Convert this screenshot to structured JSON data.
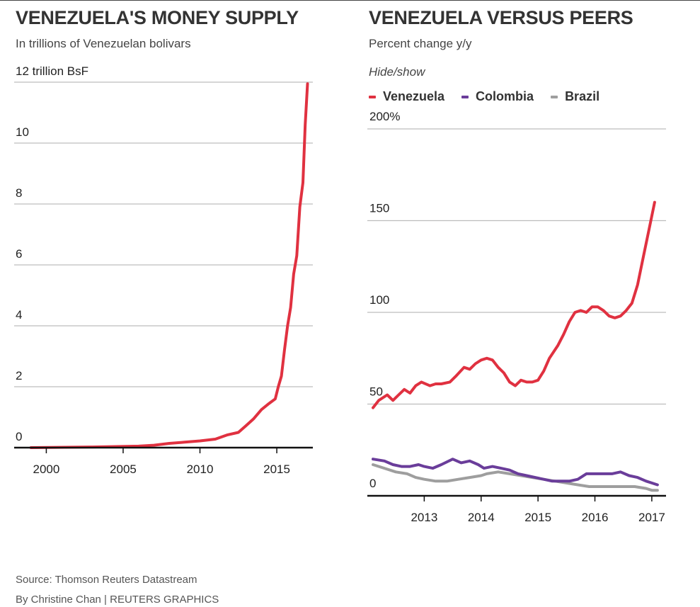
{
  "left_chart": {
    "title": "VENEZUELA'S MONEY SUPPLY",
    "subtitle": "In trillions of Venezuelan bolivars"
  },
  "right_chart": {
    "title": "VENEZUELA VERSUS PEERS",
    "subtitle": "Percent change y/y",
    "hide_show_label": "Hide/show",
    "legend": [
      {
        "label": "Venezuela",
        "color": "#e03140"
      },
      {
        "label": "Colombia",
        "color": "#6a3d9a"
      },
      {
        "label": "Brazil",
        "color": "#9e9e9e"
      }
    ]
  },
  "footer": {
    "source": "Source: Thomson Reuters Datastream",
    "credit": "By Christine Chan | REUTERS GRAPHICS"
  },
  "chart_data": [
    {
      "type": "line",
      "title": "VENEZUELA'S MONEY SUPPLY",
      "ylabel": "In trillions of Venezuelan bolivars",
      "xlim": [
        1998,
        2017.3
      ],
      "ylim": [
        0,
        12
      ],
      "y_ticks": [
        0,
        2,
        4,
        6,
        8,
        10,
        12
      ],
      "y_tick_labels": [
        "0",
        "2",
        "4",
        "6",
        "8",
        "10",
        "12 trillion BsF"
      ],
      "x_ticks": [
        2000,
        2005,
        2010,
        2015
      ],
      "x_tick_labels": [
        "2000",
        "2005",
        "2010",
        "2015"
      ],
      "series": [
        {
          "name": "Money supply",
          "color": "#e03140",
          "x": [
            1999,
            2003,
            2006,
            2007,
            2008,
            2009,
            2010,
            2011,
            2011.8,
            2012.5,
            2013,
            2013.5,
            2014,
            2014.5,
            2014.9,
            2015.1,
            2015.3,
            2015.5,
            2015.7,
            2015.9,
            2016.1,
            2016.3,
            2016.5,
            2016.7,
            2016.85,
            2017.0
          ],
          "values": [
            0.0,
            0.02,
            0.05,
            0.08,
            0.14,
            0.18,
            0.22,
            0.28,
            0.42,
            0.5,
            0.72,
            0.95,
            1.25,
            1.45,
            1.6,
            2.0,
            2.35,
            3.2,
            4.0,
            4.6,
            5.7,
            6.3,
            7.9,
            8.7,
            10.6,
            11.95
          ]
        }
      ]
    },
    {
      "type": "line",
      "title": "VENEZUELA VERSUS PEERS",
      "ylabel": "Percent change y/y",
      "xlim": [
        2012.0,
        2017.25
      ],
      "ylim": [
        0,
        200
      ],
      "y_ticks": [
        0,
        50,
        100,
        150,
        200
      ],
      "y_tick_labels": [
        "0",
        "50",
        "100",
        "150",
        "200%"
      ],
      "x_ticks": [
        2013,
        2014,
        2015,
        2016,
        2017
      ],
      "x_tick_labels": [
        "2013",
        "2014",
        "2015",
        "2016",
        "2017"
      ],
      "series": [
        {
          "name": "Venezuela",
          "color": "#e03140",
          "x": [
            2012.1,
            2012.2,
            2012.35,
            2012.45,
            2012.55,
            2012.65,
            2012.75,
            2012.85,
            2012.95,
            2013.1,
            2013.2,
            2013.3,
            2013.45,
            2013.55,
            2013.7,
            2013.8,
            2013.9,
            2014.0,
            2014.1,
            2014.2,
            2014.3,
            2014.4,
            2014.5,
            2014.6,
            2014.7,
            2014.8,
            2014.9,
            2015.0,
            2015.1,
            2015.2,
            2015.35,
            2015.45,
            2015.55,
            2015.65,
            2015.75,
            2015.85,
            2015.95,
            2016.05,
            2016.15,
            2016.25,
            2016.35,
            2016.45,
            2016.55,
            2016.65,
            2016.75,
            2016.85,
            2016.95,
            2017.05
          ],
          "values": [
            48,
            52,
            55,
            52,
            55,
            58,
            56,
            60,
            62,
            60,
            61,
            61,
            62,
            65,
            70,
            69,
            72,
            74,
            75,
            74,
            70,
            67,
            62,
            60,
            63,
            62,
            62,
            63,
            68,
            75,
            82,
            88,
            95,
            100,
            101,
            100,
            103,
            103,
            101,
            98,
            97,
            98,
            101,
            105,
            115,
            130,
            145,
            160
          ]
        },
        {
          "name": "Colombia",
          "color": "#6a3d9a",
          "x": [
            2012.1,
            2012.3,
            2012.45,
            2012.6,
            2012.75,
            2012.9,
            2013.0,
            2013.15,
            2013.3,
            2013.5,
            2013.65,
            2013.8,
            2013.95,
            2014.05,
            2014.2,
            2014.35,
            2014.5,
            2014.65,
            2014.8,
            2014.95,
            2015.1,
            2015.25,
            2015.4,
            2015.55,
            2015.7,
            2015.85,
            2016.0,
            2016.15,
            2016.3,
            2016.45,
            2016.6,
            2016.75,
            2016.9,
            2017.0,
            2017.1
          ],
          "values": [
            20,
            19,
            17,
            16,
            16,
            17,
            16,
            15,
            17,
            20,
            18,
            19,
            17,
            15,
            16,
            15,
            14,
            12,
            11,
            10,
            9,
            8,
            8,
            8,
            9,
            12,
            12,
            12,
            12,
            13,
            11,
            10,
            8,
            7,
            6
          ]
        },
        {
          "name": "Brazil",
          "color": "#9e9e9e",
          "x": [
            2012.1,
            2012.3,
            2012.5,
            2012.7,
            2012.85,
            2013.0,
            2013.2,
            2013.4,
            2013.6,
            2013.8,
            2014.0,
            2014.1,
            2014.3,
            2014.5,
            2014.7,
            2014.9,
            2015.1,
            2015.3,
            2015.5,
            2015.7,
            2015.9,
            2016.1,
            2016.3,
            2016.5,
            2016.7,
            2016.9,
            2017.0,
            2017.1
          ],
          "values": [
            17,
            15,
            13,
            12,
            10,
            9,
            8,
            8,
            9,
            10,
            11,
            12,
            13,
            12,
            11,
            10,
            9,
            8,
            7,
            6,
            5,
            5,
            5,
            5,
            5,
            4,
            3,
            3
          ]
        }
      ]
    }
  ]
}
